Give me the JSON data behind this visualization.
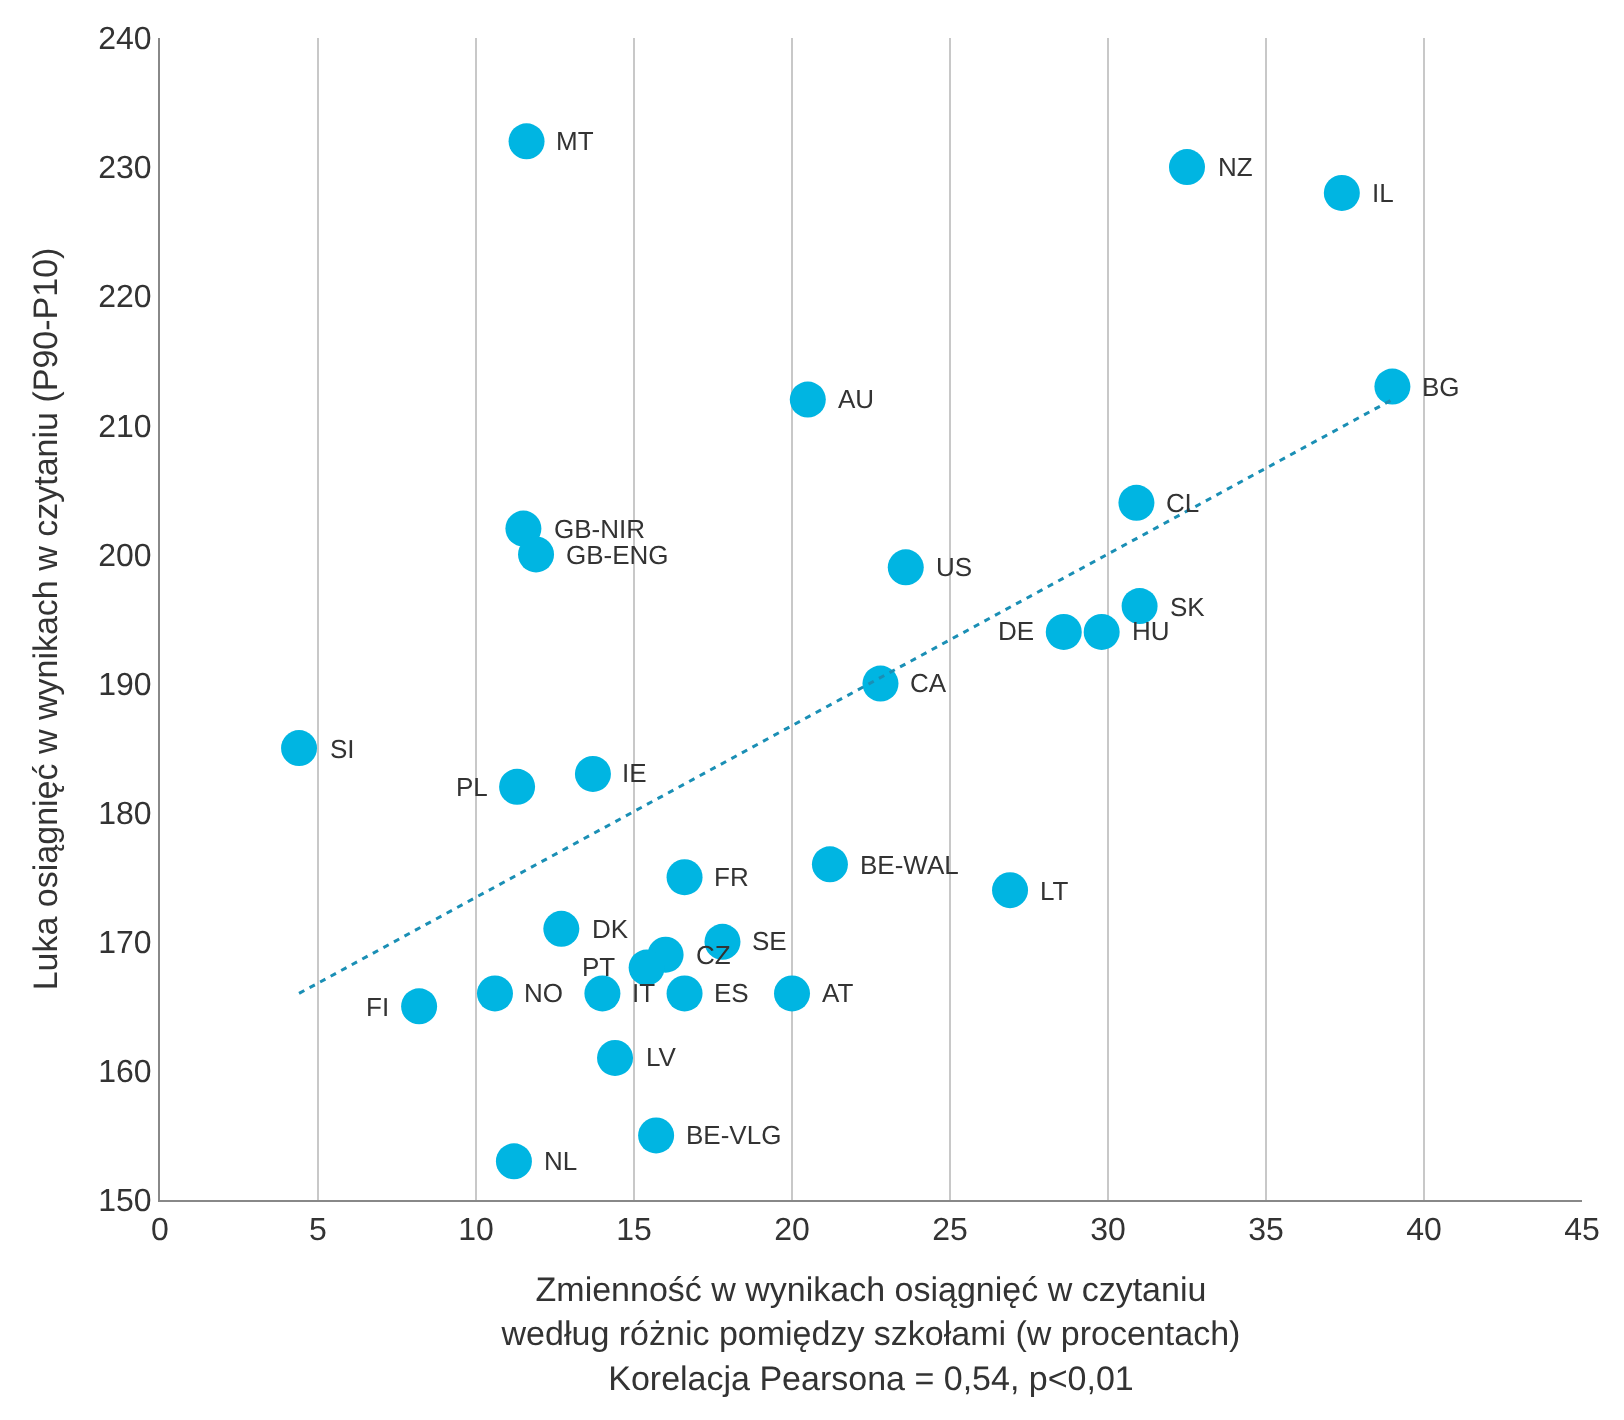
{
  "chart_data": {
    "type": "scatter",
    "xlabel": "Zmienność w wynikach osiągnięć w czytaniu\nwedług różnic pomiędzy szkołami (w procentach)\nKorelacja Pearsona = 0,54, p<0,01",
    "ylabel": "Luka osiągnięć w wynikach w czytaniu (P90-P10)",
    "xlim": [
      0,
      45
    ],
    "xticks": [
      0,
      5,
      10,
      15,
      20,
      25,
      30,
      35,
      40,
      45
    ],
    "ylim": [
      150,
      240
    ],
    "yticks": [
      150,
      160,
      170,
      180,
      190,
      200,
      210,
      220,
      230,
      240
    ],
    "grid": "x",
    "marker": "circle",
    "series": [
      {
        "color": "#00b5e2",
        "x": [
          11.6,
          32.5,
          37.4,
          39.0,
          20.5,
          30.9,
          11.5,
          11.9,
          23.6,
          31.0,
          28.6,
          29.8,
          22.8,
          4.4,
          13.7,
          11.3,
          16.6,
          21.2,
          26.9,
          12.7,
          17.8,
          16.0,
          15.4,
          8.2,
          10.6,
          14.0,
          16.6,
          20.0,
          14.4,
          15.7,
          11.2
        ],
        "values": [
          232,
          230,
          228,
          213,
          212,
          204,
          202,
          200,
          199,
          196,
          194,
          194,
          190,
          185,
          183,
          182,
          175,
          176,
          174,
          171,
          170,
          169,
          168,
          165,
          166,
          166,
          166,
          166,
          161,
          155,
          153
        ]
      },
      {
        "type": "line",
        "color": "#1a8fb5",
        "line_style": "dotted",
        "marker": "none",
        "x": [
          4.4,
          39.0
        ],
        "values": [
          166,
          212
        ]
      }
    ],
    "annotations": [
      {
        "text": "MT",
        "x": 11.6,
        "y": 232
      },
      {
        "text": "NZ",
        "x": 32.5,
        "y": 230
      },
      {
        "text": "IL",
        "x": 37.4,
        "y": 228
      },
      {
        "text": "BG",
        "x": 39.0,
        "y": 213
      },
      {
        "text": "AU",
        "x": 20.5,
        "y": 212
      },
      {
        "text": "CL",
        "x": 30.9,
        "y": 204
      },
      {
        "text": "GB-NIR",
        "x": 11.5,
        "y": 202
      },
      {
        "text": "GB-ENG",
        "x": 11.9,
        "y": 200
      },
      {
        "text": "US",
        "x": 23.6,
        "y": 199
      },
      {
        "text": "SK",
        "x": 31.0,
        "y": 196
      },
      {
        "text": "DE",
        "x": 28.6,
        "y": 194
      },
      {
        "text": "HU",
        "x": 29.8,
        "y": 194
      },
      {
        "text": "CA",
        "x": 22.8,
        "y": 190
      },
      {
        "text": "SI",
        "x": 4.4,
        "y": 185
      },
      {
        "text": "IE",
        "x": 13.7,
        "y": 183
      },
      {
        "text": "PL",
        "x": 11.3,
        "y": 182
      },
      {
        "text": "FR",
        "x": 16.6,
        "y": 175
      },
      {
        "text": "BE-WAL",
        "x": 21.2,
        "y": 176
      },
      {
        "text": "LT",
        "x": 26.9,
        "y": 174
      },
      {
        "text": "DK",
        "x": 12.7,
        "y": 171
      },
      {
        "text": "SE",
        "x": 17.8,
        "y": 170
      },
      {
        "text": "CZ",
        "x": 16.0,
        "y": 169
      },
      {
        "text": "PT",
        "x": 15.4,
        "y": 168
      },
      {
        "text": "FI",
        "x": 8.2,
        "y": 165
      },
      {
        "text": "NO",
        "x": 10.6,
        "y": 166
      },
      {
        "text": "IT",
        "x": 14.0,
        "y": 166
      },
      {
        "text": "ES",
        "x": 16.6,
        "y": 166
      },
      {
        "text": "AT",
        "x": 20.0,
        "y": 166
      },
      {
        "text": "LV",
        "x": 14.4,
        "y": 161
      },
      {
        "text": "BE-VLG",
        "x": 15.7,
        "y": 155
      },
      {
        "text": "NL",
        "x": 11.2,
        "y": 153
      }
    ]
  }
}
